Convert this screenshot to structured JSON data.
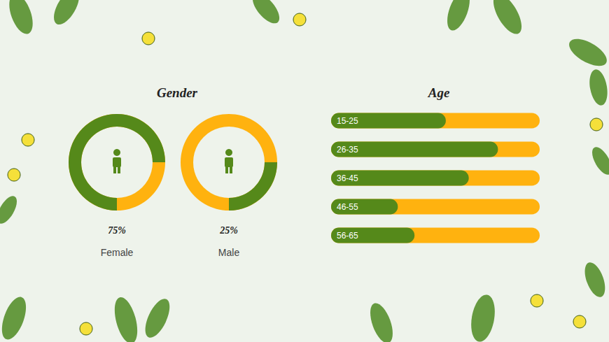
{
  "chart_data": [
    {
      "type": "pie",
      "title": "Gender",
      "categories": [
        "Female",
        "Male"
      ],
      "values": [
        75,
        25
      ],
      "value_labels": [
        "75%",
        "25%"
      ],
      "ylim": [
        0,
        100
      ],
      "color": "#55891a",
      "data_labels": true,
      "tick_labels": false
    },
    {
      "type": "bar",
      "orientation": "horizontal",
      "title": "Age",
      "categories": [
        "15-25",
        "26-35",
        "36-45",
        "46-55",
        "56-65"
      ],
      "values": [
        55,
        80,
        66,
        32,
        40
      ],
      "xlim": [
        0,
        100
      ],
      "color": "#55891a",
      "tick_labels": false,
      "grid": false
    }
  ]
}
